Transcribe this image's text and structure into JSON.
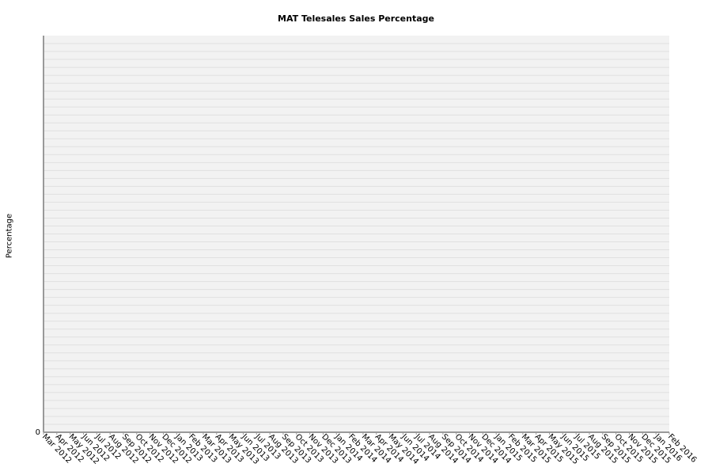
{
  "chart_data": {
    "type": "line",
    "title": "MAT Telesales Sales Percentage",
    "xlabel": "",
    "ylabel": "Percentage",
    "categories": [
      "Mar 2012",
      "Apr 2012",
      "May 2012",
      "Jun 2012",
      "Jul 2012",
      "Aug 2012",
      "Sep 2012",
      "Oct 2012",
      "Nov 2012",
      "Dec 2012",
      "Jan 2013",
      "Feb 2013",
      "Mar 2013",
      "Apr 2013",
      "May 2013",
      "Jun 2013",
      "Jul 2013",
      "Aug 2013",
      "Sep 2013",
      "Oct 2013",
      "Nov 2013",
      "Dec 2013",
      "Jan 2014",
      "Feb 2014",
      "Mar 2014",
      "Apr 2014",
      "May 2014",
      "Jun 2014",
      "Jul 2014",
      "Aug 2014",
      "Sep 2014",
      "Oct 2014",
      "Nov 2014",
      "Dec 2014",
      "Jan 2015",
      "Feb 2015",
      "Mar 2015",
      "Apr 2015",
      "May 2015",
      "Jun 2015",
      "Jul 2015",
      "Aug 2015",
      "Sep 2015",
      "Oct 2015",
      "Nov 2015",
      "Dec 2015",
      "Jan 2016",
      "Feb 2016"
    ],
    "series": [],
    "y_ticks": [
      "0"
    ],
    "grid": true,
    "colors": {
      "plot_background": "#f2f2f2",
      "gridline": "#e0e0e0",
      "axis": "#999999"
    }
  }
}
